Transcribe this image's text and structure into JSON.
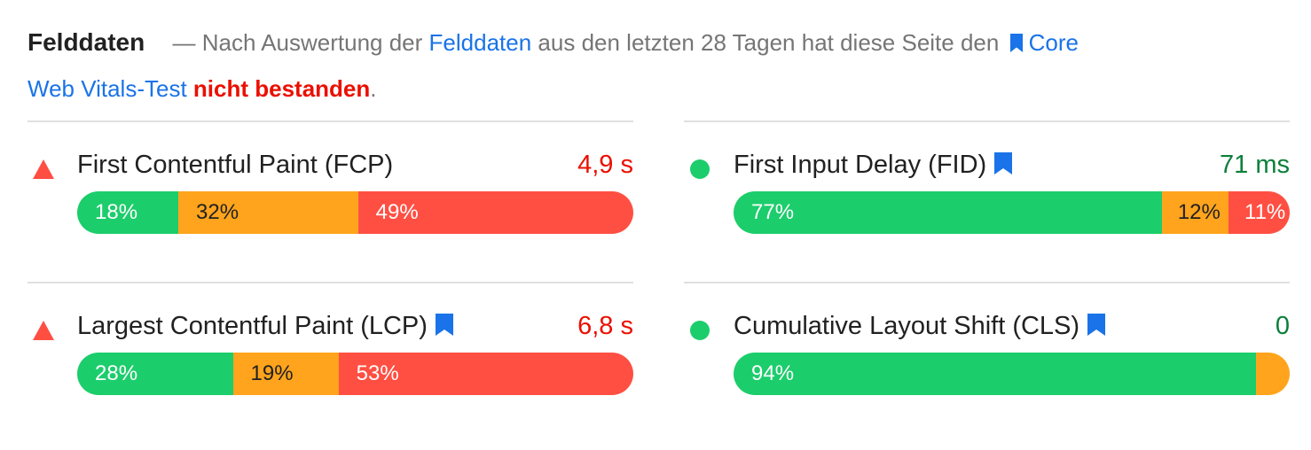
{
  "summary": {
    "heading": "Felddaten",
    "dash": "—",
    "text_before": "Nach Auswertung der",
    "link_field": "Felddaten",
    "text_middle": "aus den letzten 28 Tagen hat diese Seite den",
    "link_cwv_1": "Core",
    "link_cwv_2": "Web Vitals-Test",
    "result": "nicht bestanden",
    "period": "."
  },
  "metrics": {
    "fcp": {
      "title": "First Contentful Paint (FCP)",
      "value": "4,9 s",
      "status": "fail",
      "bookmark": false,
      "distribution": {
        "good": "18%",
        "ni": "32%",
        "poor": "49%"
      },
      "fractions": {
        "good": 0.18,
        "ni": 0.32,
        "poor": 0.49
      }
    },
    "fid": {
      "title": "First Input Delay (FID)",
      "value": "71 ms",
      "status": "pass",
      "bookmark": true,
      "distribution": {
        "good": "77%",
        "ni": "12%",
        "poor": "11%"
      },
      "fractions": {
        "good": 0.77,
        "ni": 0.12,
        "poor": 0.11
      }
    },
    "lcp": {
      "title": "Largest Contentful Paint (LCP)",
      "value": "6,8 s",
      "status": "fail",
      "bookmark": true,
      "distribution": {
        "good": "28%",
        "ni": "19%",
        "poor": "53%"
      },
      "fractions": {
        "good": 0.28,
        "ni": 0.19,
        "poor": 0.53
      }
    },
    "cls": {
      "title": "Cumulative Layout Shift (CLS)",
      "value": "0",
      "status": "pass",
      "bookmark": true,
      "distribution": {
        "good": "94%",
        "ni": "2%",
        "poor": "4%"
      },
      "fractions": {
        "good": 0.94,
        "ni": 0.02,
        "poor": 0.04
      }
    }
  },
  "icons": {
    "fail": "red-triangle-icon",
    "pass": "green-circle-icon",
    "bookmark": "bookmark-icon"
  },
  "colors": {
    "good": "#1ccd6c",
    "needs_improvement": "#ffa41c",
    "poor": "#ff4f42",
    "fail_text": "#eb0f00",
    "pass_text": "#0d7f3a",
    "link": "#1a73e8"
  }
}
